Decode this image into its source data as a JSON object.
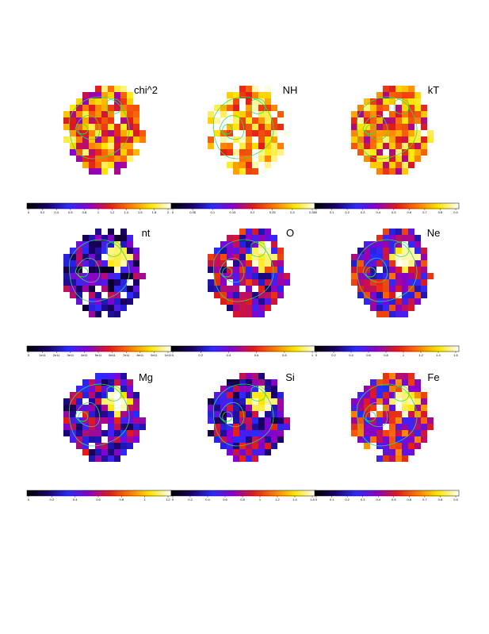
{
  "chart_data": {
    "type": "heatmap",
    "colormap": [
      "#000000",
      "#1a0066",
      "#2b2bff",
      "#8a00c8",
      "#e01a1a",
      "#ff7a00",
      "#ffe600",
      "#ffffff"
    ],
    "contour_color": "#33dd55",
    "panels": [
      {
        "title": "chi^2",
        "tick_labels": [
          "0",
          "0.2",
          "0.4",
          "0.6",
          "0.8",
          "1",
          "1.2",
          "1.4",
          "1.6",
          "1.8",
          "2"
        ],
        "dominant_level": 0.68
      },
      {
        "title": "NH",
        "tick_labels": [
          "0",
          "0.05",
          "0.1",
          "0.15",
          "0.2",
          "0.25",
          "0.3",
          "0.35"
        ],
        "dominant_level": 0.82
      },
      {
        "title": "kT",
        "tick_labels": [
          "0",
          "0.1",
          "0.2",
          "0.3",
          "0.4",
          "0.5",
          "0.6",
          "0.7",
          "0.8",
          "0.9"
        ],
        "dominant_level": 0.72
      },
      {
        "title": "nt",
        "tick_labels": [
          "0",
          "1e11",
          "2e11",
          "3e11",
          "4e11",
          "5e11",
          "6e11",
          "7e11",
          "8e11",
          "9e11",
          "1e12"
        ],
        "dominant_level": 0.28
      },
      {
        "title": "O",
        "tick_labels": [
          "0",
          "0.2",
          "0.4",
          "0.6",
          "0.8",
          "1"
        ],
        "dominant_level": 0.4
      },
      {
        "title": "Ne",
        "tick_labels": [
          "0",
          "0.2",
          "0.4",
          "0.6",
          "0.8",
          "1",
          "1.2",
          "1.4",
          "1.6"
        ],
        "dominant_level": 0.45
      },
      {
        "title": "Mg",
        "tick_labels": [
          "0",
          "0.2",
          "0.4",
          "0.6",
          "0.8",
          "1",
          "1.2"
        ],
        "dominant_level": 0.36
      },
      {
        "title": "Si",
        "tick_labels": [
          "0",
          "0.2",
          "0.4",
          "0.6",
          "0.8",
          "1",
          "1.2",
          "1.4",
          "1.6"
        ],
        "dominant_level": 0.34
      },
      {
        "title": "Fe",
        "tick_labels": [
          "0",
          "0.1",
          "0.2",
          "0.3",
          "0.4",
          "0.5",
          "0.6",
          "0.7",
          "0.8",
          "0.9"
        ],
        "dominant_level": 0.52
      }
    ]
  }
}
